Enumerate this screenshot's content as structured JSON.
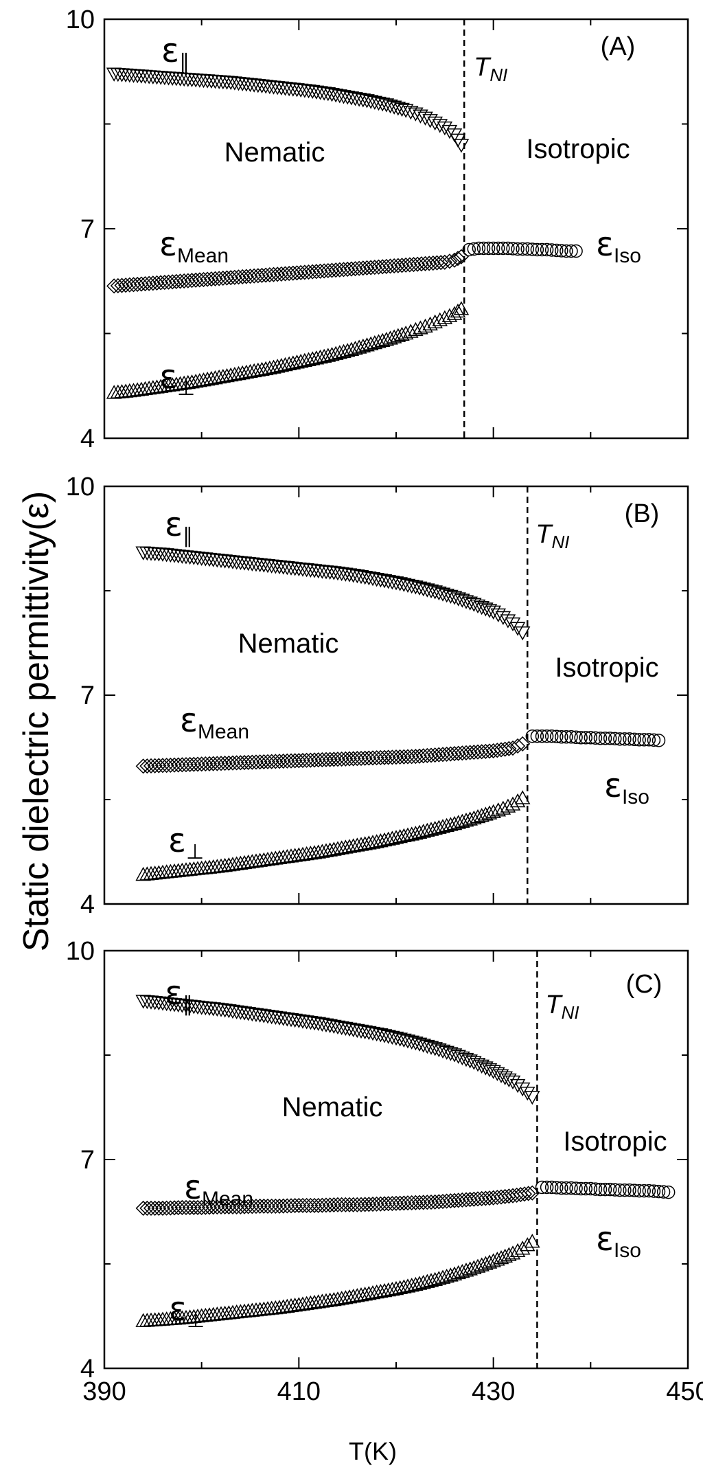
{
  "figure": {
    "ylabel": "Static dielectric permittivity(ε)",
    "xlabel": "T(K)"
  },
  "chart_data": [
    {
      "type": "scatter",
      "panel": "(A)",
      "xlim": [
        390,
        450
      ],
      "ylim": [
        4,
        10
      ],
      "xticks": [
        390,
        410,
        430,
        450
      ],
      "yticks": [
        4,
        7,
        10
      ],
      "nematic_label": "Nematic",
      "isotropic_label": "Isotropic",
      "tni": 427.0,
      "tni_main": "T",
      "tni_sub": "NI",
      "series": [
        {
          "name": "ε∥",
          "base": "ε",
          "sub": "∥",
          "marker": "triangle-down",
          "x": [
            391,
            393,
            395,
            397,
            399,
            401,
            403,
            405,
            407,
            409,
            411,
            413,
            415,
            417,
            419,
            421,
            422,
            423,
            424,
            425,
            426,
            426.7
          ],
          "y": [
            9.22,
            9.2,
            9.18,
            9.16,
            9.14,
            9.12,
            9.1,
            9.07,
            9.04,
            9.01,
            8.98,
            8.94,
            8.89,
            8.84,
            8.78,
            8.7,
            8.65,
            8.59,
            8.52,
            8.45,
            8.35,
            8.2
          ]
        },
        {
          "name": "εMean",
          "base": "ε",
          "sub": "Mean",
          "marker": "diamond",
          "x": [
            391,
            393,
            395,
            397,
            399,
            401,
            403,
            405,
            407,
            409,
            411,
            413,
            415,
            417,
            419,
            421,
            423,
            425,
            426,
            426.7
          ],
          "y": [
            6.18,
            6.2,
            6.22,
            6.24,
            6.26,
            6.28,
            6.3,
            6.32,
            6.34,
            6.36,
            6.38,
            6.4,
            6.42,
            6.44,
            6.46,
            6.48,
            6.5,
            6.52,
            6.55,
            6.6
          ]
        },
        {
          "name": "ε⊥",
          "base": "ε",
          "sub": "⊥",
          "marker": "triangle-up",
          "x": [
            391,
            393,
            395,
            397,
            399,
            401,
            403,
            405,
            407,
            409,
            411,
            413,
            415,
            417,
            419,
            421,
            422,
            423,
            424,
            425,
            426,
            426.7
          ],
          "y": [
            4.65,
            4.68,
            4.72,
            4.76,
            4.8,
            4.85,
            4.9,
            4.95,
            5.0,
            5.06,
            5.12,
            5.18,
            5.25,
            5.33,
            5.41,
            5.5,
            5.55,
            5.6,
            5.66,
            5.72,
            5.78,
            5.85
          ]
        },
        {
          "name": "εIso",
          "base": "ε",
          "sub": "Iso",
          "marker": "circle",
          "x": [
            427.5,
            428.5,
            429.5,
            430.5,
            431.5,
            432.5,
            433.5,
            434.5,
            435.5,
            436.5,
            437.5,
            438.5
          ],
          "y": [
            6.7,
            6.72,
            6.72,
            6.72,
            6.72,
            6.71,
            6.71,
            6.7,
            6.7,
            6.69,
            6.68,
            6.68
          ]
        }
      ]
    },
    {
      "type": "scatter",
      "panel": "(B)",
      "xlim": [
        390,
        450
      ],
      "ylim": [
        4,
        10
      ],
      "xticks": [
        390,
        410,
        430,
        450
      ],
      "yticks": [
        4,
        7,
        10
      ],
      "nematic_label": "Nematic",
      "isotropic_label": "Isotropic",
      "tni": 433.5,
      "tni_main": "T",
      "tni_sub": "NI",
      "series": [
        {
          "name": "ε∥",
          "base": "ε",
          "sub": "∥",
          "marker": "triangle-down",
          "x": [
            394,
            396,
            398,
            400,
            402,
            404,
            406,
            408,
            410,
            412,
            414,
            416,
            418,
            420,
            422,
            424,
            426,
            428,
            430,
            431,
            432,
            433
          ],
          "y": [
            9.05,
            9.03,
            9.0,
            8.97,
            8.94,
            8.91,
            8.88,
            8.85,
            8.82,
            8.79,
            8.76,
            8.72,
            8.67,
            8.62,
            8.56,
            8.49,
            8.41,
            8.31,
            8.2,
            8.12,
            8.03,
            7.9
          ]
        },
        {
          "name": "εMean",
          "base": "ε",
          "sub": "Mean",
          "marker": "diamond",
          "x": [
            394,
            396,
            398,
            400,
            402,
            404,
            406,
            408,
            410,
            412,
            414,
            416,
            418,
            420,
            422,
            424,
            426,
            428,
            430,
            432,
            433
          ],
          "y": [
            5.98,
            5.99,
            6.0,
            6.01,
            6.02,
            6.03,
            6.04,
            6.05,
            6.06,
            6.07,
            6.08,
            6.09,
            6.1,
            6.11,
            6.12,
            6.14,
            6.16,
            6.18,
            6.2,
            6.24,
            6.3
          ]
        },
        {
          "name": "ε⊥",
          "base": "ε",
          "sub": "⊥",
          "marker": "triangle-up",
          "x": [
            394,
            396,
            398,
            400,
            402,
            404,
            406,
            408,
            410,
            412,
            414,
            416,
            418,
            420,
            422,
            424,
            426,
            428,
            430,
            431,
            432,
            433
          ],
          "y": [
            4.42,
            4.45,
            4.48,
            4.51,
            4.54,
            4.58,
            4.62,
            4.66,
            4.7,
            4.74,
            4.79,
            4.84,
            4.89,
            4.95,
            5.01,
            5.08,
            5.15,
            5.23,
            5.32,
            5.37,
            5.43,
            5.52
          ]
        },
        {
          "name": "εIso",
          "base": "ε",
          "sub": "Iso",
          "marker": "circle",
          "x": [
            434,
            435,
            436,
            437,
            438,
            439,
            440,
            441,
            442,
            443,
            444,
            445,
            446,
            447
          ],
          "y": [
            6.41,
            6.41,
            6.41,
            6.4,
            6.4,
            6.39,
            6.39,
            6.38,
            6.38,
            6.37,
            6.37,
            6.36,
            6.36,
            6.35
          ]
        }
      ]
    },
    {
      "type": "scatter",
      "panel": "(C)",
      "xlim": [
        390,
        450
      ],
      "ylim": [
        4,
        10
      ],
      "xticks": [
        390,
        410,
        430,
        450
      ],
      "yticks": [
        4,
        7,
        10
      ],
      "xlabel": "T(K)",
      "nematic_label": "Nematic",
      "isotropic_label": "Isotropic",
      "tni": 434.5,
      "tni_main": "T",
      "tni_sub": "NI",
      "series": [
        {
          "name": "ε∥",
          "base": "ε",
          "sub": "∥",
          "marker": "triangle-down",
          "x": [
            394,
            396,
            398,
            400,
            402,
            404,
            406,
            408,
            410,
            412,
            414,
            416,
            418,
            420,
            422,
            424,
            426,
            428,
            430,
            432,
            433,
            434
          ],
          "y": [
            9.28,
            9.25,
            9.22,
            9.19,
            9.16,
            9.12,
            9.08,
            9.04,
            9.0,
            8.96,
            8.91,
            8.86,
            8.81,
            8.75,
            8.68,
            8.6,
            8.51,
            8.4,
            8.27,
            8.12,
            8.02,
            7.9
          ]
        },
        {
          "name": "εMean",
          "base": "ε",
          "sub": "Mean",
          "marker": "diamond",
          "x": [
            394,
            396,
            398,
            400,
            402,
            404,
            406,
            408,
            410,
            412,
            414,
            416,
            418,
            420,
            422,
            424,
            426,
            428,
            430,
            432,
            434
          ],
          "y": [
            6.3,
            6.3,
            6.31,
            6.31,
            6.32,
            6.32,
            6.33,
            6.33,
            6.34,
            6.34,
            6.35,
            6.35,
            6.36,
            6.37,
            6.38,
            6.39,
            6.41,
            6.43,
            6.45,
            6.48,
            6.52
          ]
        },
        {
          "name": "ε⊥",
          "base": "ε",
          "sub": "⊥",
          "marker": "triangle-up",
          "x": [
            394,
            396,
            398,
            400,
            402,
            404,
            406,
            408,
            410,
            412,
            414,
            416,
            418,
            420,
            422,
            424,
            426,
            428,
            430,
            432,
            433,
            434
          ],
          "y": [
            4.68,
            4.7,
            4.72,
            4.75,
            4.78,
            4.81,
            4.84,
            4.87,
            4.91,
            4.95,
            4.99,
            5.04,
            5.09,
            5.14,
            5.2,
            5.27,
            5.35,
            5.44,
            5.54,
            5.65,
            5.72,
            5.82
          ]
        },
        {
          "name": "εIso",
          "base": "ε",
          "sub": "Iso",
          "marker": "circle",
          "x": [
            435,
            436,
            437,
            438,
            439,
            440,
            441,
            442,
            443,
            444,
            445,
            446,
            447,
            448
          ],
          "y": [
            6.6,
            6.6,
            6.59,
            6.59,
            6.58,
            6.58,
            6.57,
            6.57,
            6.56,
            6.56,
            6.55,
            6.55,
            6.54,
            6.53
          ]
        }
      ]
    }
  ]
}
